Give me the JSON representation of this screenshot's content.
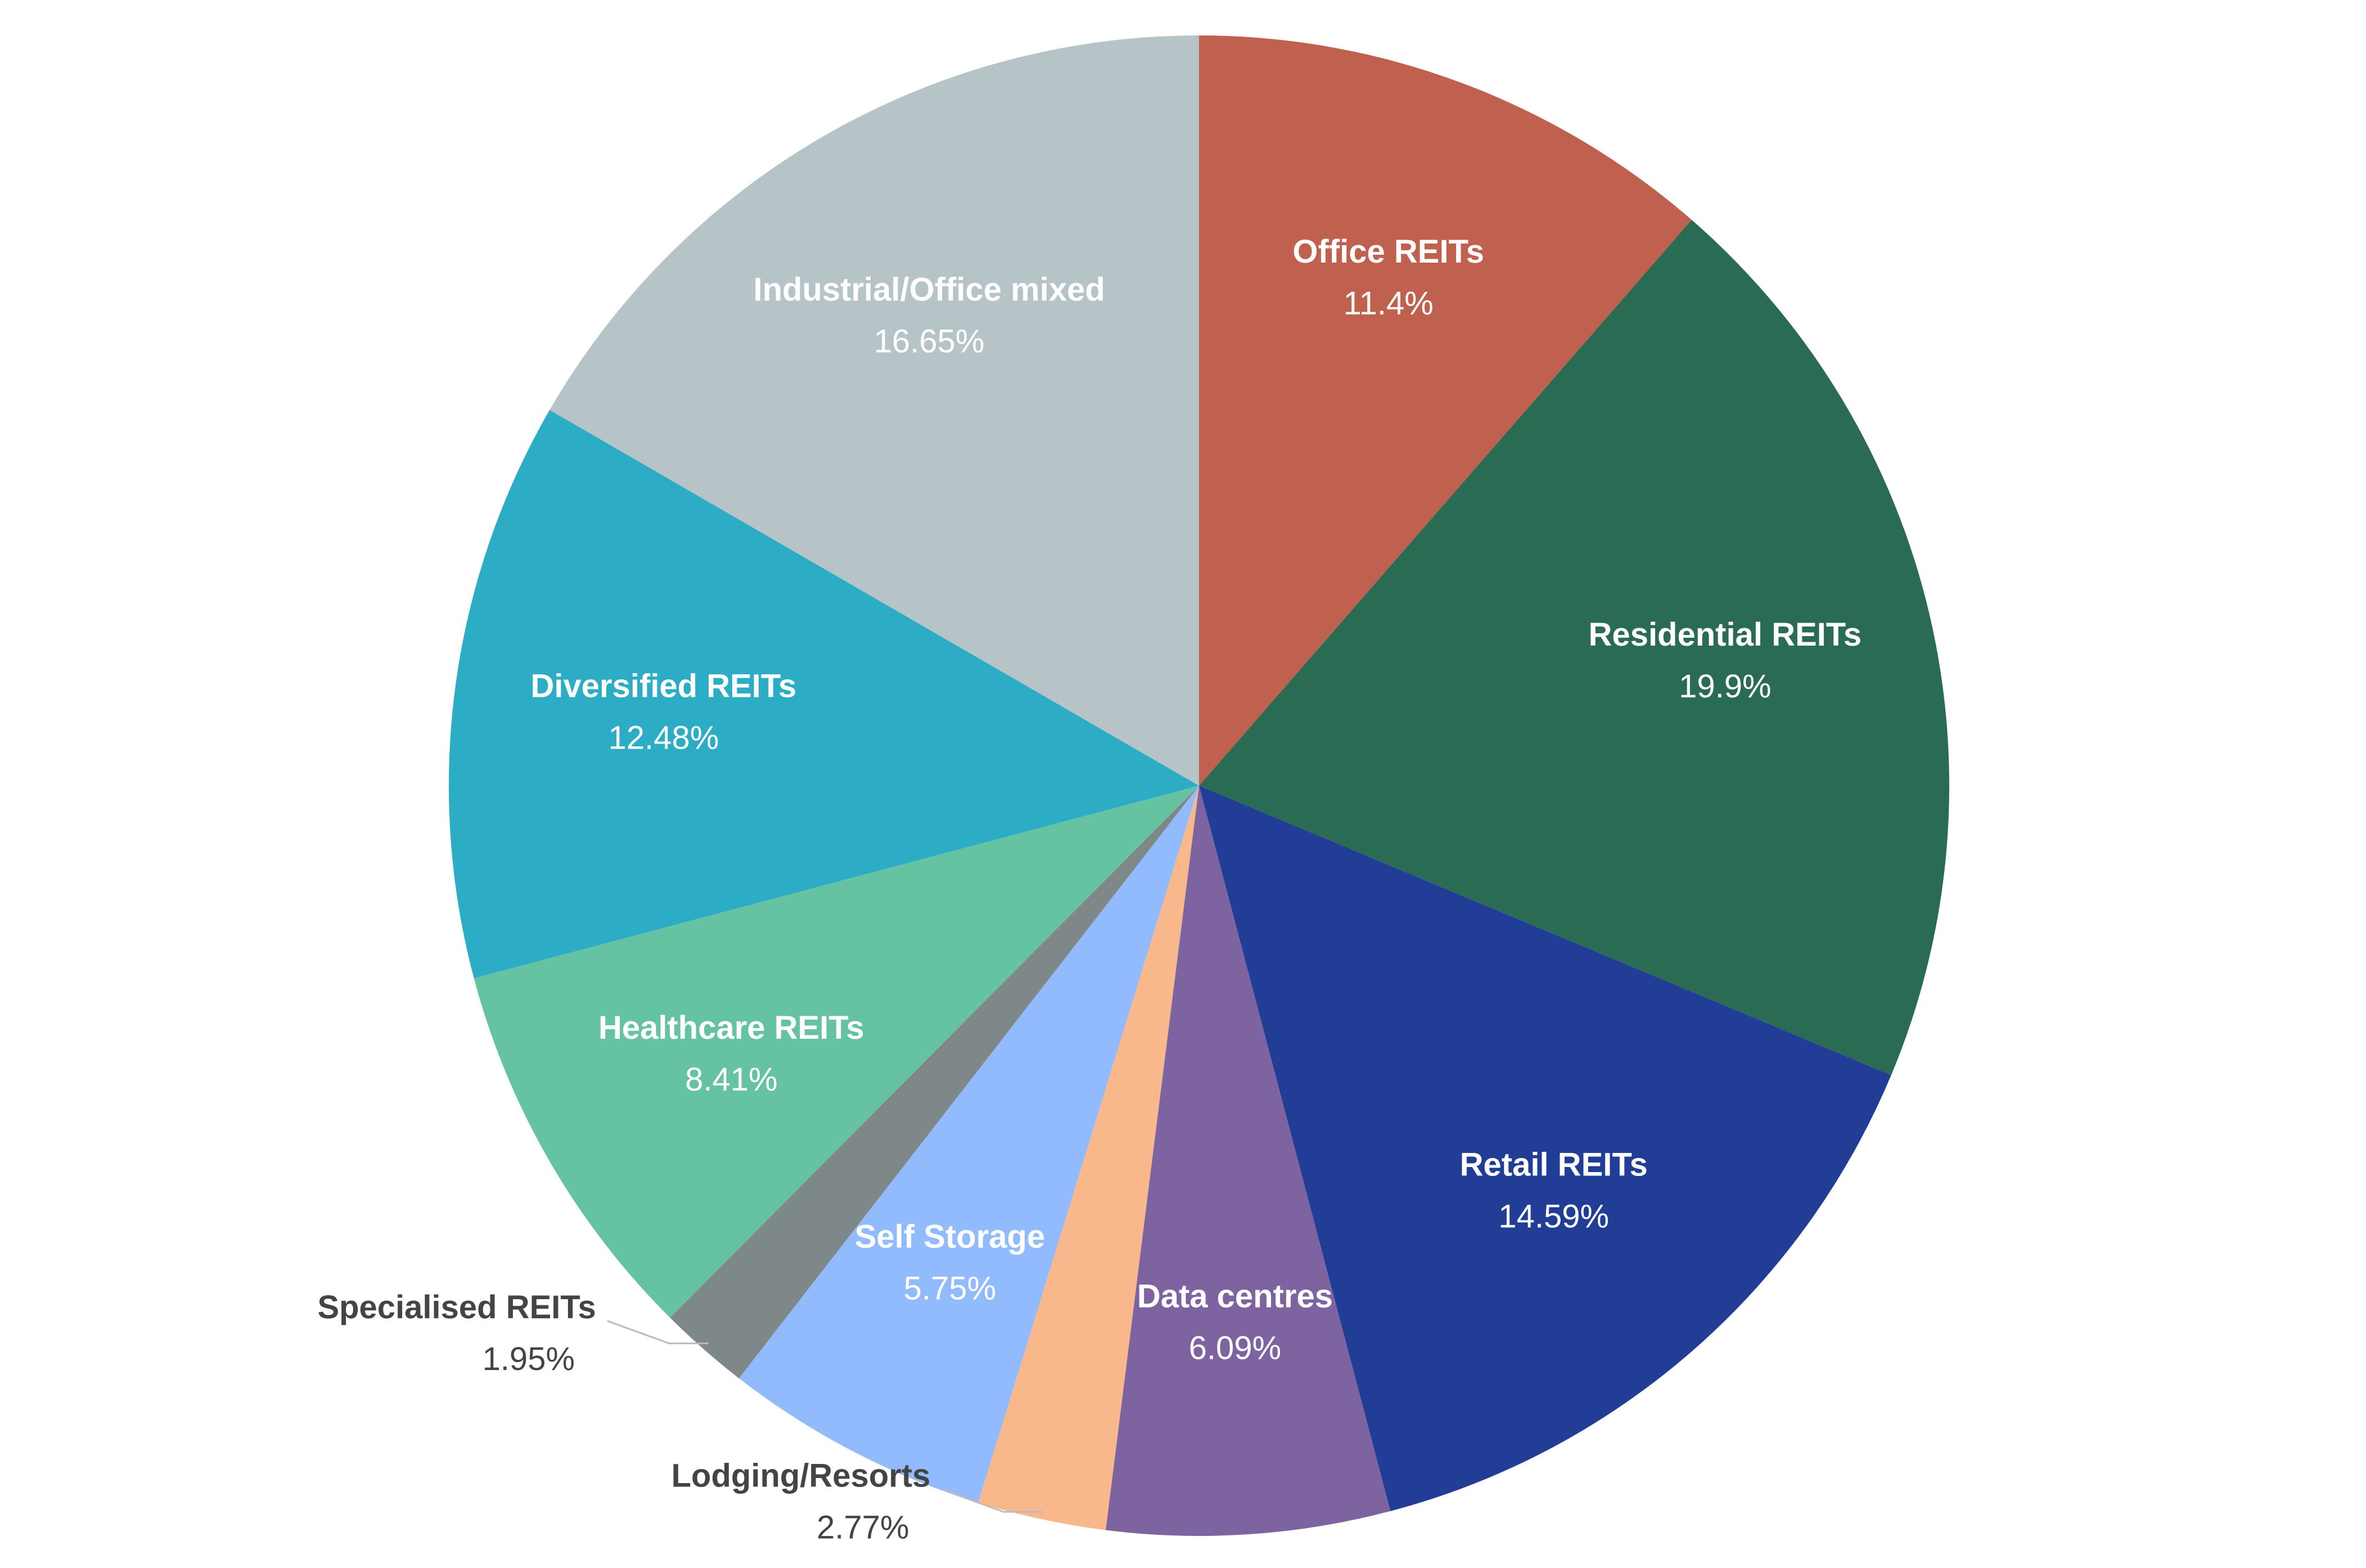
{
  "chart_data": {
    "type": "pie",
    "categories": [
      "Office REITs",
      "Residential REITs",
      "Retail REITs",
      "Data centres",
      "Lodging/Resorts",
      "Self Storage",
      "Specialised REITs",
      "Healthcare REITs",
      "Diversified REITs",
      "Industrial/Office mixed"
    ],
    "values": [
      11.4,
      19.9,
      14.59,
      6.09,
      2.77,
      5.75,
      1.95,
      8.41,
      12.48,
      16.65
    ],
    "value_labels": [
      "11.4%",
      "19.9%",
      "14.59%",
      "6.09%",
      "2.77%",
      "5.75%",
      "1.95%",
      "8.41%",
      "12.48%",
      "16.65%"
    ],
    "colors": [
      "#c0604f",
      "#2a6b54",
      "#213d96",
      "#7d63a0",
      "#f9b88b",
      "#91bbfc",
      "#7e8889",
      "#66c3a1",
      "#2cadc5",
      "#b7c4c7"
    ]
  }
}
